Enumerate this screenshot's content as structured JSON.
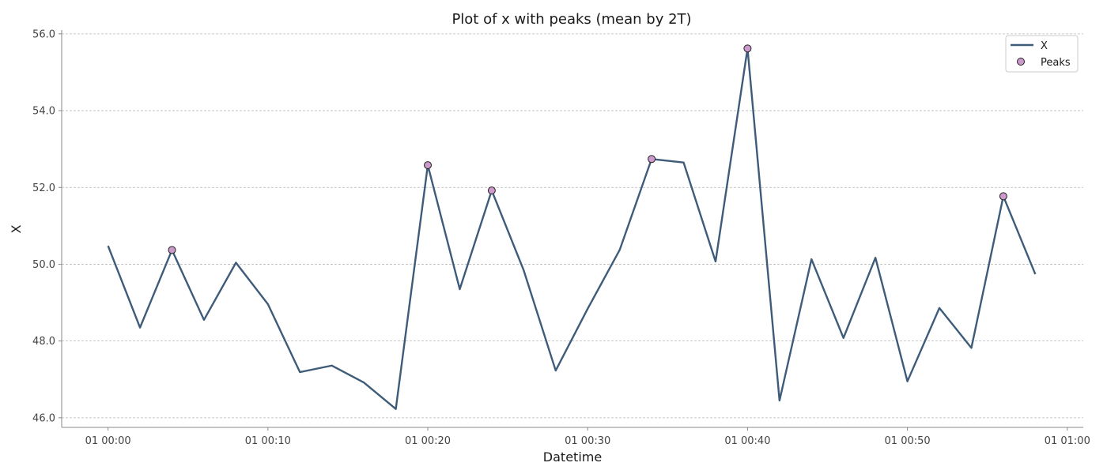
{
  "chart_data": {
    "type": "line",
    "title": "Plot of x with peaks (mean by 2T)",
    "xlabel": "Datetime",
    "ylabel": "X",
    "x_minutes": [
      0,
      2,
      4,
      6,
      8,
      10,
      12,
      14,
      16,
      18,
      20,
      22,
      24,
      26,
      28,
      30,
      32,
      34,
      36,
      38,
      40,
      42,
      44,
      46,
      48,
      50,
      52,
      54,
      56,
      58
    ],
    "x_tick_minutes": [
      0,
      10,
      20,
      30,
      40,
      50,
      60
    ],
    "x_tick_labels": [
      "01 00:00",
      "01 00:10",
      "01 00:20",
      "01 00:30",
      "01 00:40",
      "01 00:50",
      "01 01:00"
    ],
    "xlim_minutes": [
      -2.9,
      61
    ],
    "ylim": [
      45.75,
      56.1
    ],
    "y_ticks": [
      46.0,
      48.0,
      50.0,
      52.0,
      54.0,
      56.0
    ],
    "y_tick_labels": [
      "46.0",
      "48.0",
      "50.0",
      "52.0",
      "54.0",
      "56.0"
    ],
    "grid": "y-dashed",
    "legend_position": "top-right",
    "series": [
      {
        "name": "X",
        "color": "#3e5c7a",
        "values": [
          50.48,
          48.35,
          50.37,
          48.55,
          50.04,
          48.96,
          47.19,
          47.36,
          46.92,
          46.23,
          52.58,
          49.35,
          51.92,
          49.84,
          47.23,
          48.84,
          50.37,
          52.74,
          52.65,
          50.07,
          55.62,
          46.45,
          50.13,
          48.08,
          50.17,
          46.95,
          48.86,
          47.82,
          51.77,
          49.74
        ]
      },
      {
        "name": "Peaks",
        "type": "scatter",
        "color": "#cc99cc",
        "edge_color": "#222222",
        "x_minutes": [
          4,
          20,
          24,
          34,
          40,
          56
        ],
        "values": [
          50.37,
          52.58,
          51.92,
          52.74,
          55.62,
          51.77
        ]
      }
    ]
  }
}
